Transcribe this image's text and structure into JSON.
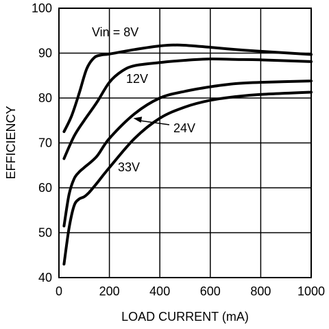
{
  "chart_data": {
    "type": "line",
    "xlabel": "LOAD CURRENT (mA)",
    "ylabel": "EFFICIENCY",
    "xlim": [
      0,
      1000
    ],
    "ylim": [
      40,
      100
    ],
    "xticks": [
      0,
      200,
      400,
      600,
      800,
      1000
    ],
    "yticks": [
      40,
      50,
      60,
      70,
      80,
      90,
      100
    ],
    "grid": true,
    "series": [
      {
        "name": "Vin = 8V",
        "x": [
          20,
          50,
          80,
          110,
          140,
          170,
          200,
          300,
          400,
          480,
          600,
          700,
          800,
          1000
        ],
        "y": [
          72.5,
          76,
          81,
          86.5,
          89,
          89.6,
          89.8,
          90.8,
          91.6,
          91.8,
          91.3,
          90.8,
          90.4,
          89.7
        ]
      },
      {
        "name": "12V",
        "x": [
          20,
          60,
          100,
          150,
          200,
          250,
          300,
          400,
          500,
          600,
          700,
          800,
          1000
        ],
        "y": [
          66.5,
          71.5,
          75,
          79,
          83.5,
          86,
          87.2,
          87.9,
          88.4,
          88.7,
          88.6,
          88.5,
          88.1
        ]
      },
      {
        "name": "24V",
        "x": [
          20,
          40,
          60,
          80,
          100,
          150,
          200,
          300,
          400,
          500,
          600,
          700,
          800,
          1000
        ],
        "y": [
          51.5,
          58.5,
          62,
          63.5,
          64.5,
          67,
          71,
          76.5,
          80,
          81.5,
          82.5,
          83.2,
          83.5,
          83.8
        ]
      },
      {
        "name": "33V",
        "x": [
          20,
          40,
          60,
          80,
          100,
          120,
          150,
          200,
          300,
          400,
          500,
          600,
          700,
          800,
          1000
        ],
        "y": [
          43,
          51,
          56,
          57.5,
          58,
          59,
          61,
          64.5,
          71,
          75.5,
          78,
          79.5,
          80.3,
          80.8,
          81.3
        ]
      }
    ],
    "annotations": [
      {
        "text": "Vin = 8V",
        "series": "Vin = 8V"
      },
      {
        "text": "12V",
        "series": "12V"
      },
      {
        "text": "24V",
        "series": "24V",
        "arrow_to": [
          295,
          75.5
        ]
      },
      {
        "text": "33V",
        "series": "33V"
      }
    ]
  }
}
